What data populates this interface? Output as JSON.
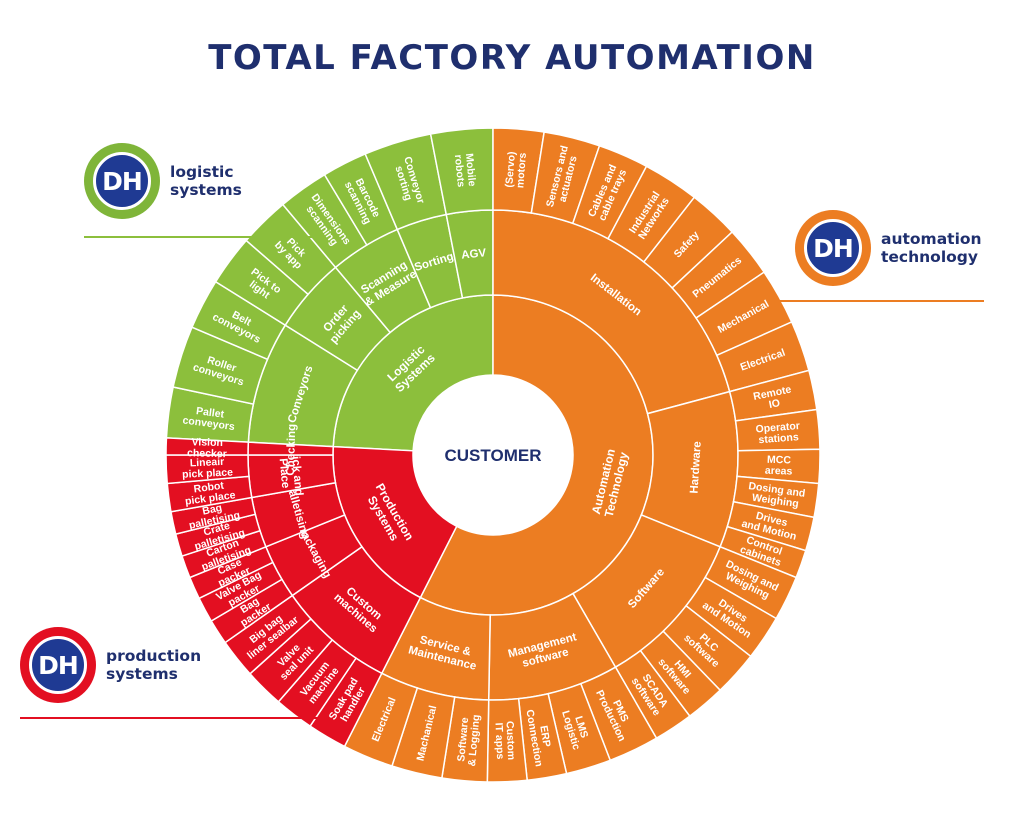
{
  "title": "TOTAL FACTORY AUTOMATION",
  "center_label": "CUSTOMER",
  "colors": {
    "title": "#1f2f6e",
    "green": "#8cbf3c",
    "orange": "#ec7d22",
    "red": "#e30f21",
    "logo_blue": "#1f3a93"
  },
  "badges": [
    {
      "id": "logistic",
      "logo_text": "DH",
      "line1": "logistic",
      "line2": "systems",
      "ring_color": "#7fb539"
    },
    {
      "id": "automation",
      "logo_text": "DH",
      "line1": "automation",
      "line2": "technology",
      "ring_color": "#ec7d22"
    },
    {
      "id": "production",
      "logo_text": "DH",
      "line1": "production",
      "line2": "systems",
      "ring_color": "#e30f21"
    }
  ],
  "sectors": [
    {
      "name": "Logistic Systems",
      "color": "#8cbf3c",
      "groups": [
        {
          "name": "Conveyors",
          "items": [
            "Pallet conveyors",
            "Roller conveyors",
            "Belt conveyors"
          ]
        },
        {
          "name": "Order picking",
          "items": [
            "Pick to light",
            "Pick by app"
          ]
        },
        {
          "name": "Scanning & Measure",
          "items": [
            "Dimensions scanning",
            "Barcode scanning"
          ]
        },
        {
          "name": "Sorting",
          "items": [
            "Conveyor sorting"
          ]
        },
        {
          "name": "AGV",
          "items": [
            "Mobile robots"
          ]
        }
      ]
    },
    {
      "name": "Automation Technology",
      "color": "#ec7d22",
      "groups": [
        {
          "name": "Installation",
          "items": [
            "(Servo) motors",
            "Sensors and actuators",
            "Cables and cable trays",
            "Industrial Networks",
            "Safety",
            "Pneumatics",
            "Mechanical",
            "Electrical"
          ]
        },
        {
          "name": "Hardware",
          "items": [
            "Remote IO",
            "Operator stations",
            "MCC areas",
            "Dosing and Weighing",
            "Drives and Motion",
            "Control cabinets"
          ]
        },
        {
          "name": "Software",
          "items": [
            "Dosing and Weighing",
            "Drives and Motion",
            "PLC software",
            "HMI software",
            "SCADA software"
          ]
        },
        {
          "name": "Management software",
          "items": [
            "PMS Production",
            "LMS Logistic",
            "ERP Connection",
            "Custom IT apps"
          ]
        },
        {
          "name": "Service & Maintenance",
          "items": [
            "Software & Logging",
            "Machanical",
            "Electrical"
          ]
        }
      ]
    },
    {
      "name": "Production Systems",
      "color": "#e30f21",
      "groups": [
        {
          "name": "Custom machines",
          "items": [
            "Soak pad handler",
            "Vacuum machine",
            "Valve seal unit",
            "Big bag liner sealbar"
          ]
        },
        {
          "name": "Packaging",
          "items": [
            "Bag packer",
            "Valve Bag packer",
            "Case packer"
          ]
        },
        {
          "name": "Palletising",
          "items": [
            "Carton palletising",
            "Crate palletising",
            "Bag palletising"
          ]
        },
        {
          "name": "Pick and Place",
          "items": [
            "Robot pick place",
            "Lineair pick place"
          ]
        },
        {
          "name": "Checking",
          "items": [
            "Vision checker"
          ]
        }
      ]
    }
  ]
}
